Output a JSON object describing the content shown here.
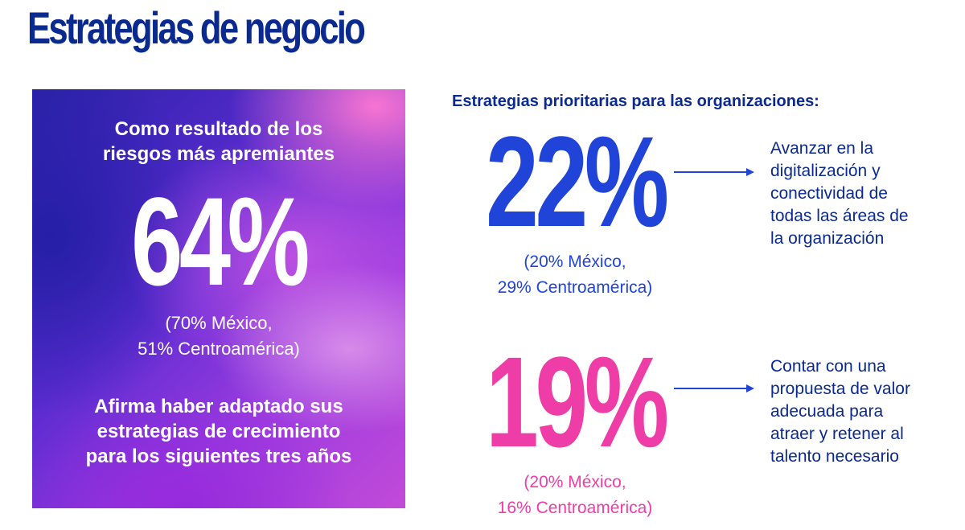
{
  "title": "Estrategias de negocio",
  "panel": {
    "intro_line1": "Como resultado de los",
    "intro_line2": "riesgos más apremiantes",
    "value": "64%",
    "breakdown_line1": "(70% México,",
    "breakdown_line2": "51% Centroamérica)",
    "conclusion_line1": "Afirma haber adaptado sus",
    "conclusion_line2": "estrategias de crecimiento",
    "conclusion_line3": "para los siguientes tres años"
  },
  "subtitle": "Estrategias prioritarias para las organizaciones:",
  "stats": [
    {
      "value": "22%",
      "breakdown_line1": "(20% México,",
      "breakdown_line2": "29% Centroamérica)",
      "description": [
        "Avanzar en la",
        "digitalización y",
        "conectividad de",
        "todas las áreas de",
        "la organización"
      ],
      "color": "#2044d8"
    },
    {
      "value": "19%",
      "breakdown_line1": "(20% México,",
      "breakdown_line2": "16% Centroamérica)",
      "description": [
        "Contar con una",
        "propuesta de valor",
        "adecuada para",
        "atraer y retener al",
        "talento necesario"
      ],
      "color": "#ee3da6"
    }
  ],
  "colors": {
    "title": "#0b2a8f",
    "arrow": "#2044d8"
  }
}
